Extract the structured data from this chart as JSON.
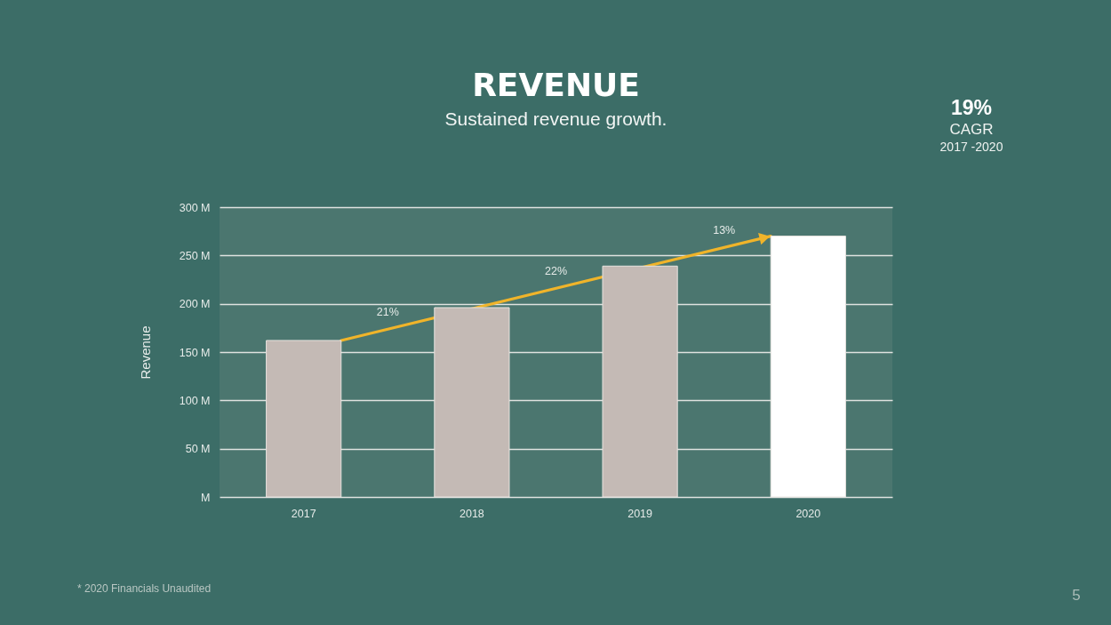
{
  "chart_data": {
    "type": "bar",
    "title": "REVENUE",
    "subtitle": "Sustained revenue growth.",
    "ylabel": "Revenue",
    "categories": [
      "2017",
      "2018",
      "2019",
      "2020"
    ],
    "values": [
      162,
      196,
      239,
      270
    ],
    "colors": [
      "#c4bab5",
      "#c4bab5",
      "#c4bab5",
      "#ffffff"
    ],
    "ylim": [
      0,
      300
    ],
    "yticks": [
      {
        "value": 0,
        "label": "M"
      },
      {
        "value": 50,
        "label": "50 M"
      },
      {
        "value": 100,
        "label": "100 M"
      },
      {
        "value": 150,
        "label": "150 M"
      },
      {
        "value": 200,
        "label": "200 M"
      },
      {
        "value": 250,
        "label": "250 M"
      },
      {
        "value": 300,
        "label": "300 M"
      }
    ],
    "grid": "y",
    "annotations": [
      "21%",
      "22%",
      "13%",
      "19%",
      "CAGR",
      "2017 -2020",
      "* 2020 Financials Unaudited",
      "5"
    ]
  }
}
